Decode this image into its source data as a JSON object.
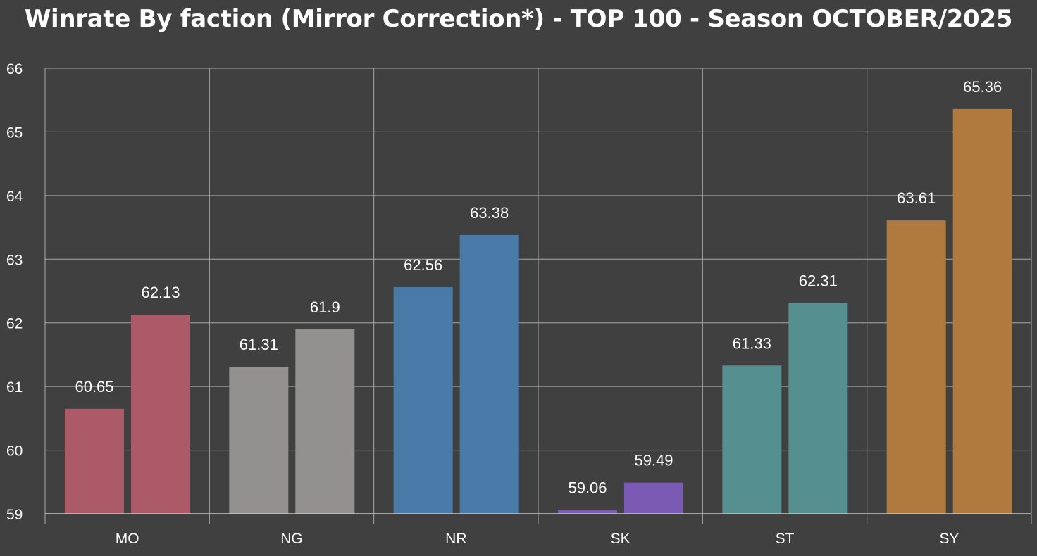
{
  "chart_data": {
    "type": "bar",
    "title": "Winrate By faction (Mirror Correction*) - TOP 100 - Season OCTOBER/2025",
    "xlabel": "",
    "ylabel": "",
    "categories": [
      "MO",
      "NG",
      "NR",
      "SK",
      "ST",
      "SY"
    ],
    "series": [
      {
        "values": [
          60.65,
          61.31,
          62.56,
          59.06,
          61.33,
          63.61
        ]
      },
      {
        "values": [
          62.13,
          61.9,
          63.38,
          59.49,
          62.31,
          65.36
        ]
      }
    ],
    "category_colors": [
      "#ad5a68",
      "#929190",
      "#4a7ba8",
      "#7b5ab5",
      "#558f8f",
      "#b07a3e"
    ],
    "ylim": [
      59,
      66
    ],
    "yticks": [
      59,
      60,
      61,
      62,
      63,
      64,
      65,
      66
    ],
    "grid": true,
    "legend": "none",
    "colors": {
      "background": "#404040",
      "grid": "#a8a8a8",
      "text": "#ffffff"
    }
  }
}
